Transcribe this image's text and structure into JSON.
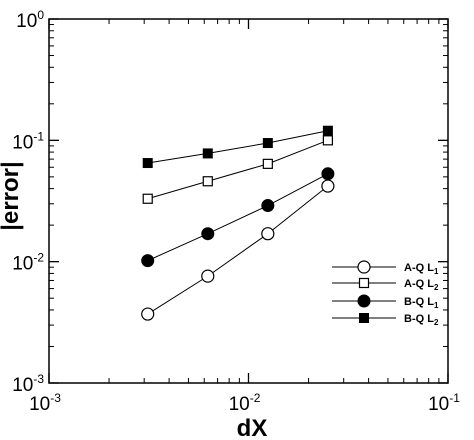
{
  "chart_data": {
    "type": "line",
    "title": "",
    "xlabel": "dX",
    "ylabel": "|error|",
    "xscale": "log",
    "yscale": "log",
    "xlim": [
      0.001,
      0.1
    ],
    "ylim": [
      0.001,
      1
    ],
    "xticks": [
      {
        "base": "10",
        "exp": "-3"
      },
      {
        "base": "10",
        "exp": "-2"
      },
      {
        "base": "10",
        "exp": "-1"
      }
    ],
    "yticks": [
      {
        "base": "10",
        "exp": "-3"
      },
      {
        "base": "10",
        "exp": "-2"
      },
      {
        "base": "10",
        "exp": "-1"
      },
      {
        "base": "10",
        "exp": "0"
      }
    ],
    "legend_position": "right-middle",
    "series": [
      {
        "name": "A-Q",
        "sub": "1",
        "marker": "open-circle",
        "x": [
          0.003125,
          0.00625,
          0.0125,
          0.025
        ],
        "y": [
          0.0037,
          0.0076,
          0.017,
          0.042
        ]
      },
      {
        "name": "A-Q",
        "sub": "2",
        "marker": "open-square",
        "x": [
          0.003125,
          0.00625,
          0.0125,
          0.025
        ],
        "y": [
          0.033,
          0.046,
          0.064,
          0.1
        ]
      },
      {
        "name": "B-Q",
        "sub": "1",
        "marker": "filled-circle",
        "x": [
          0.003125,
          0.00625,
          0.0125,
          0.025
        ],
        "y": [
          0.0102,
          0.017,
          0.029,
          0.053
        ]
      },
      {
        "name": "B-Q",
        "sub": "2",
        "marker": "filled-square",
        "x": [
          0.003125,
          0.00625,
          0.0125,
          0.025
        ],
        "y": [
          0.065,
          0.078,
          0.095,
          0.12
        ]
      }
    ]
  }
}
